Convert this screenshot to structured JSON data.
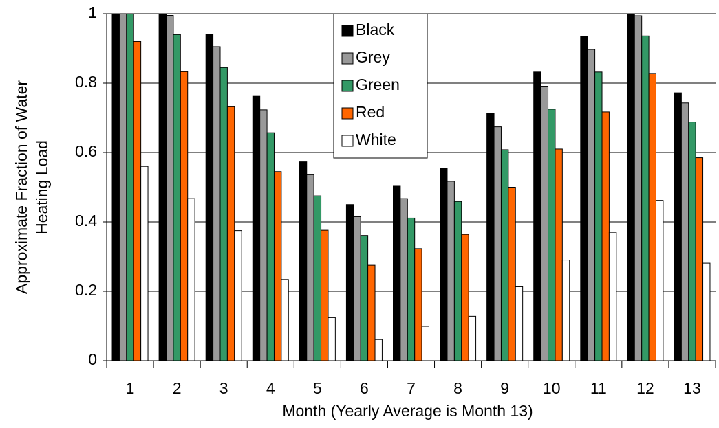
{
  "chart_data": {
    "type": "bar",
    "xlabel": "Month (Yearly Average is Month 13)",
    "ylabel": [
      "Approximate Fraction of Water",
      "Heating Load"
    ],
    "categories": [
      "1",
      "2",
      "3",
      "4",
      "5",
      "6",
      "7",
      "8",
      "9",
      "10",
      "11",
      "12",
      "13"
    ],
    "series": [
      {
        "name": "Black",
        "color": "#000000",
        "values": [
          1,
          1,
          0.94,
          0.762,
          0.573,
          0.45,
          0.503,
          0.554,
          0.713,
          0.832,
          0.934,
          1,
          0.772
        ]
      },
      {
        "name": "Grey",
        "color": "#999999",
        "values": [
          1,
          0.995,
          0.905,
          0.723,
          0.536,
          0.415,
          0.467,
          0.517,
          0.674,
          0.791,
          0.897,
          0.994,
          0.743
        ]
      },
      {
        "name": "Green",
        "color": "#339966",
        "values": [
          1,
          0.94,
          0.845,
          0.657,
          0.475,
          0.361,
          0.411,
          0.459,
          0.608,
          0.725,
          0.832,
          0.936,
          0.688
        ]
      },
      {
        "name": "Red",
        "color": "#ff6600",
        "values": [
          0.92,
          0.833,
          0.732,
          0.545,
          0.376,
          0.275,
          0.323,
          0.364,
          0.5,
          0.61,
          0.717,
          0.828,
          0.585
        ]
      },
      {
        "name": "White",
        "color": "#ffffff",
        "values": [
          0.56,
          0.467,
          0.375,
          0.234,
          0.124,
          0.061,
          0.099,
          0.128,
          0.213,
          0.29,
          0.37,
          0.462,
          0.281
        ]
      }
    ],
    "ylim": [
      0,
      1
    ],
    "yticks": [
      0,
      0.2,
      0.4,
      0.6,
      0.8,
      1
    ],
    "grid": true,
    "legend": "top-center"
  }
}
